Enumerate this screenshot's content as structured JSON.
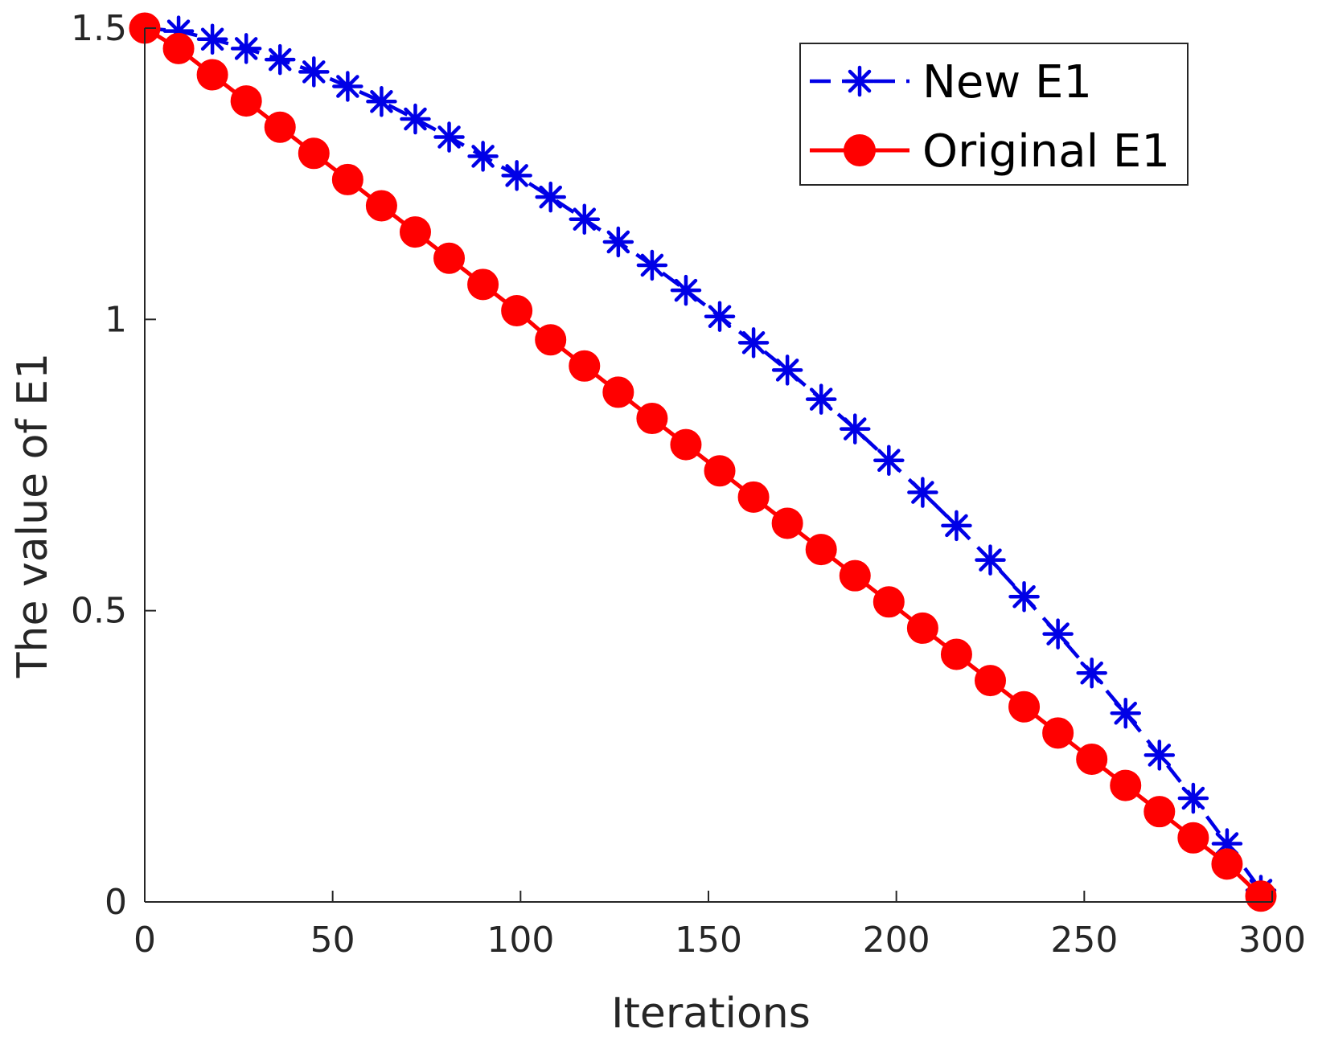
{
  "chart_data": {
    "type": "line",
    "title": "",
    "xlabel": "Iterations",
    "ylabel": "The value of E1",
    "xlim": [
      0,
      300
    ],
    "ylim": [
      0,
      1.5
    ],
    "xticks": [
      "0",
      "50",
      "100",
      "150",
      "200",
      "250",
      "300"
    ],
    "yticks": [
      "0",
      "0.5",
      "1",
      "1.5"
    ],
    "grid": false,
    "legend_position": "top-right",
    "x": [
      0,
      9,
      18,
      27,
      36,
      45,
      54,
      63,
      72,
      81,
      90,
      99,
      108,
      117,
      126,
      135,
      144,
      153,
      162,
      171,
      180,
      189,
      198,
      207,
      216,
      225,
      234,
      243,
      252,
      261,
      270,
      279,
      288,
      297
    ],
    "series": [
      {
        "name": "New E1",
        "color": "#0000e6",
        "line_style": "dashed",
        "marker": "asterisk",
        "values": [
          1.5,
          1.495,
          1.481,
          1.465,
          1.446,
          1.425,
          1.4,
          1.374,
          1.344,
          1.313,
          1.28,
          1.247,
          1.21,
          1.172,
          1.133,
          1.093,
          1.05,
          1.005,
          0.96,
          0.913,
          0.863,
          0.812,
          0.758,
          0.703,
          0.646,
          0.587,
          0.524,
          0.46,
          0.393,
          0.324,
          0.252,
          0.178,
          0.1,
          0.02
        ]
      },
      {
        "name": "Original E1",
        "color": "#ff0000",
        "line_style": "solid",
        "marker": "circle",
        "values": [
          1.5,
          1.465,
          1.42,
          1.375,
          1.33,
          1.285,
          1.24,
          1.195,
          1.15,
          1.105,
          1.06,
          1.015,
          0.965,
          0.92,
          0.875,
          0.83,
          0.785,
          0.74,
          0.695,
          0.65,
          0.605,
          0.56,
          0.515,
          0.47,
          0.425,
          0.38,
          0.335,
          0.29,
          0.245,
          0.2,
          0.155,
          0.11,
          0.065,
          0.01
        ]
      }
    ]
  }
}
